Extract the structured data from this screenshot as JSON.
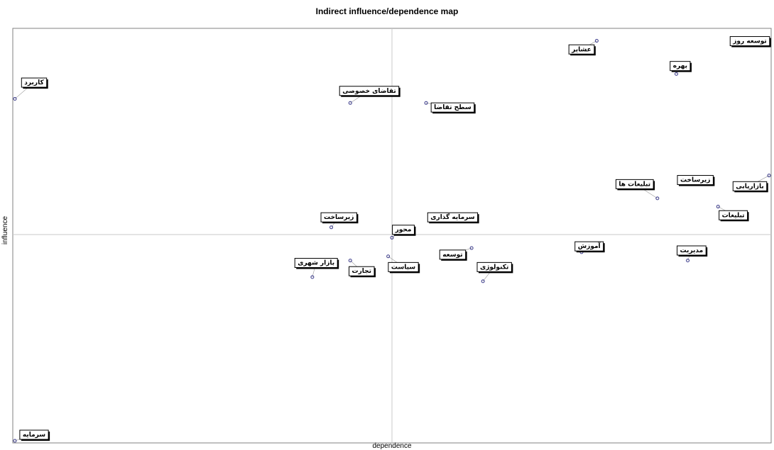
{
  "chart_data": {
    "type": "scatter",
    "title": "Indirect influence/dependence map",
    "xlabel": "dependence",
    "ylabel": "influence",
    "xlim": [
      0,
      100
    ],
    "ylim": [
      0,
      100
    ],
    "grid": false,
    "legend": "none",
    "colors": {
      "point": "#3a3a8a",
      "box_border": "#000000",
      "box_fill": "#ffffff",
      "axis_line": "#c8c8c8"
    },
    "points": [
      {
        "label": "عشایر",
        "x": 77.0,
        "y": 97.0,
        "lx": 75.0,
        "ly": 95.0
      },
      {
        "label": "توسعه روز",
        "x": 98.0,
        "y": 97.0,
        "lx": 98.0,
        "ly": 97.0
      },
      {
        "label": "بهره",
        "x": 87.5,
        "y": 89.0,
        "lx": 88.0,
        "ly": 91.0
      },
      {
        "label": "کاربرد",
        "x": 0.0,
        "y": 83.0,
        "lx": 2.0,
        "ly": 87.0
      },
      {
        "label": "تقاضای خصوصی",
        "x": 44.5,
        "y": 82.0,
        "lx": 47.0,
        "ly": 85.0
      },
      {
        "label": "سطح تقاضا",
        "x": 54.5,
        "y": 82.0,
        "lx": 58.0,
        "ly": 81.0
      },
      {
        "label": "بازاریابی",
        "x": 100.0,
        "y": 64.5,
        "lx": 98.0,
        "ly": 62.0
      },
      {
        "label": "زیرساخت",
        "x": 92.0,
        "y": 63.0,
        "lx": 90.0,
        "ly": 63.5
      },
      {
        "label": "تبلیغات ها",
        "x": 85.0,
        "y": 59.0,
        "lx": 82.0,
        "ly": 62.5
      },
      {
        "label": "تبلیغات",
        "x": 93.0,
        "y": 57.0,
        "lx": 95.0,
        "ly": 55.0
      },
      {
        "label": "سرمایه گذاری",
        "x": 56.0,
        "y": 55.0,
        "lx": 58.0,
        "ly": 54.5
      },
      {
        "label": "زیرساخت",
        "x": 42.0,
        "y": 52.0,
        "lx": 43.0,
        "ly": 54.5
      },
      {
        "label": "محور",
        "x": 50.0,
        "y": 49.5,
        "lx": 51.5,
        "ly": 51.5
      },
      {
        "label": "آموزش",
        "x": 75.0,
        "y": 46.0,
        "lx": 76.0,
        "ly": 47.5
      },
      {
        "label": "مدیریت",
        "x": 89.0,
        "y": 44.0,
        "lx": 89.5,
        "ly": 46.5
      },
      {
        "label": "توسعه",
        "x": 60.5,
        "y": 47.0,
        "lx": 58.0,
        "ly": 45.5
      },
      {
        "label": "بازار شهری",
        "x": 39.5,
        "y": 40.0,
        "lx": 40.0,
        "ly": 43.5
      },
      {
        "label": "تجارت",
        "x": 44.5,
        "y": 44.0,
        "lx": 46.0,
        "ly": 41.5
      },
      {
        "label": "سیاست",
        "x": 49.5,
        "y": 45.0,
        "lx": 51.5,
        "ly": 42.5
      },
      {
        "label": "تکنولوژی",
        "x": 62.0,
        "y": 39.0,
        "lx": 63.5,
        "ly": 42.5
      },
      {
        "label": "سرمایه",
        "x": 0.0,
        "y": 0.0,
        "lx": 2.5,
        "ly": 1.5
      }
    ]
  }
}
